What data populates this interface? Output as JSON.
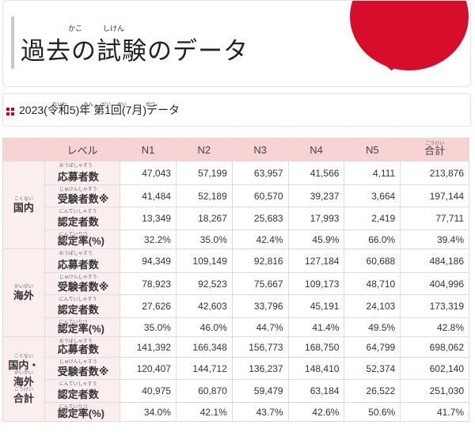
{
  "title": {
    "ruby": [
      "かこ",
      "しけん"
    ],
    "text": "過去の試験のデータ"
  },
  "section": {
    "text": "2023(令和5)年 第1回(7月)データ",
    "ruby": [
      "れいわ",
      "ねん",
      "だい",
      "かい",
      "がつ"
    ]
  },
  "table": {
    "headers": [
      "レベル",
      "N1",
      "N2",
      "N3",
      "N4",
      "N5",
      "合計"
    ],
    "total_ruby": "ごうけい",
    "row_labels": [
      "応募者数",
      "受験者数※",
      "認定者数",
      "認定率(%)"
    ],
    "row_ruby": [
      "おうぼしゃすう",
      "じゅけんしゃすう",
      "にんていしゃすう",
      "にんていりつ"
    ],
    "groups": [
      {
        "name_lines": [
          "国内"
        ],
        "ruby": [
          "こくない"
        ],
        "rows": [
          [
            "47,043",
            "57,199",
            "63,957",
            "41,566",
            "4,111",
            "213,876"
          ],
          [
            "41,484",
            "52,189",
            "60,570",
            "39,237",
            "3,664",
            "197,144"
          ],
          [
            "13,349",
            "18,267",
            "25,683",
            "17,993",
            "2,419",
            "77,711"
          ],
          [
            "32.2%",
            "35.0%",
            "42.4%",
            "45.9%",
            "66.0%",
            "39.4%"
          ]
        ]
      },
      {
        "name_lines": [
          "海外"
        ],
        "ruby": [
          "かいがい"
        ],
        "rows": [
          [
            "94,349",
            "109,149",
            "92,816",
            "127,184",
            "60,688",
            "484,186"
          ],
          [
            "78,923",
            "92,523",
            "75,667",
            "109,173",
            "48,710",
            "404,996"
          ],
          [
            "27,626",
            "42,603",
            "33,796",
            "45,191",
            "24,103",
            "173,319"
          ],
          [
            "35.0%",
            "46.0%",
            "44.7%",
            "41.4%",
            "49.5%",
            "42.8%"
          ]
        ]
      },
      {
        "name_lines": [
          "国内・",
          "海外",
          "合計"
        ],
        "ruby": [
          "こくない",
          "かいがい",
          "ごうけい"
        ],
        "rows": [
          [
            "141,392",
            "166,348",
            "156,773",
            "168,750",
            "64,799",
            "698,062"
          ],
          [
            "120,407",
            "144,712",
            "136,237",
            "148,410",
            "52,374",
            "602,140"
          ],
          [
            "40,975",
            "60,870",
            "59,479",
            "63,184",
            "26,522",
            "251,030"
          ],
          [
            "34.0%",
            "42.1%",
            "43.7%",
            "42.6%",
            "50.6%",
            "41.7%"
          ]
        ]
      }
    ]
  },
  "colors": {
    "accent_red": "#d70e2a",
    "header_pink": "#f7d3d3",
    "label_pink": "#fbeeee"
  }
}
